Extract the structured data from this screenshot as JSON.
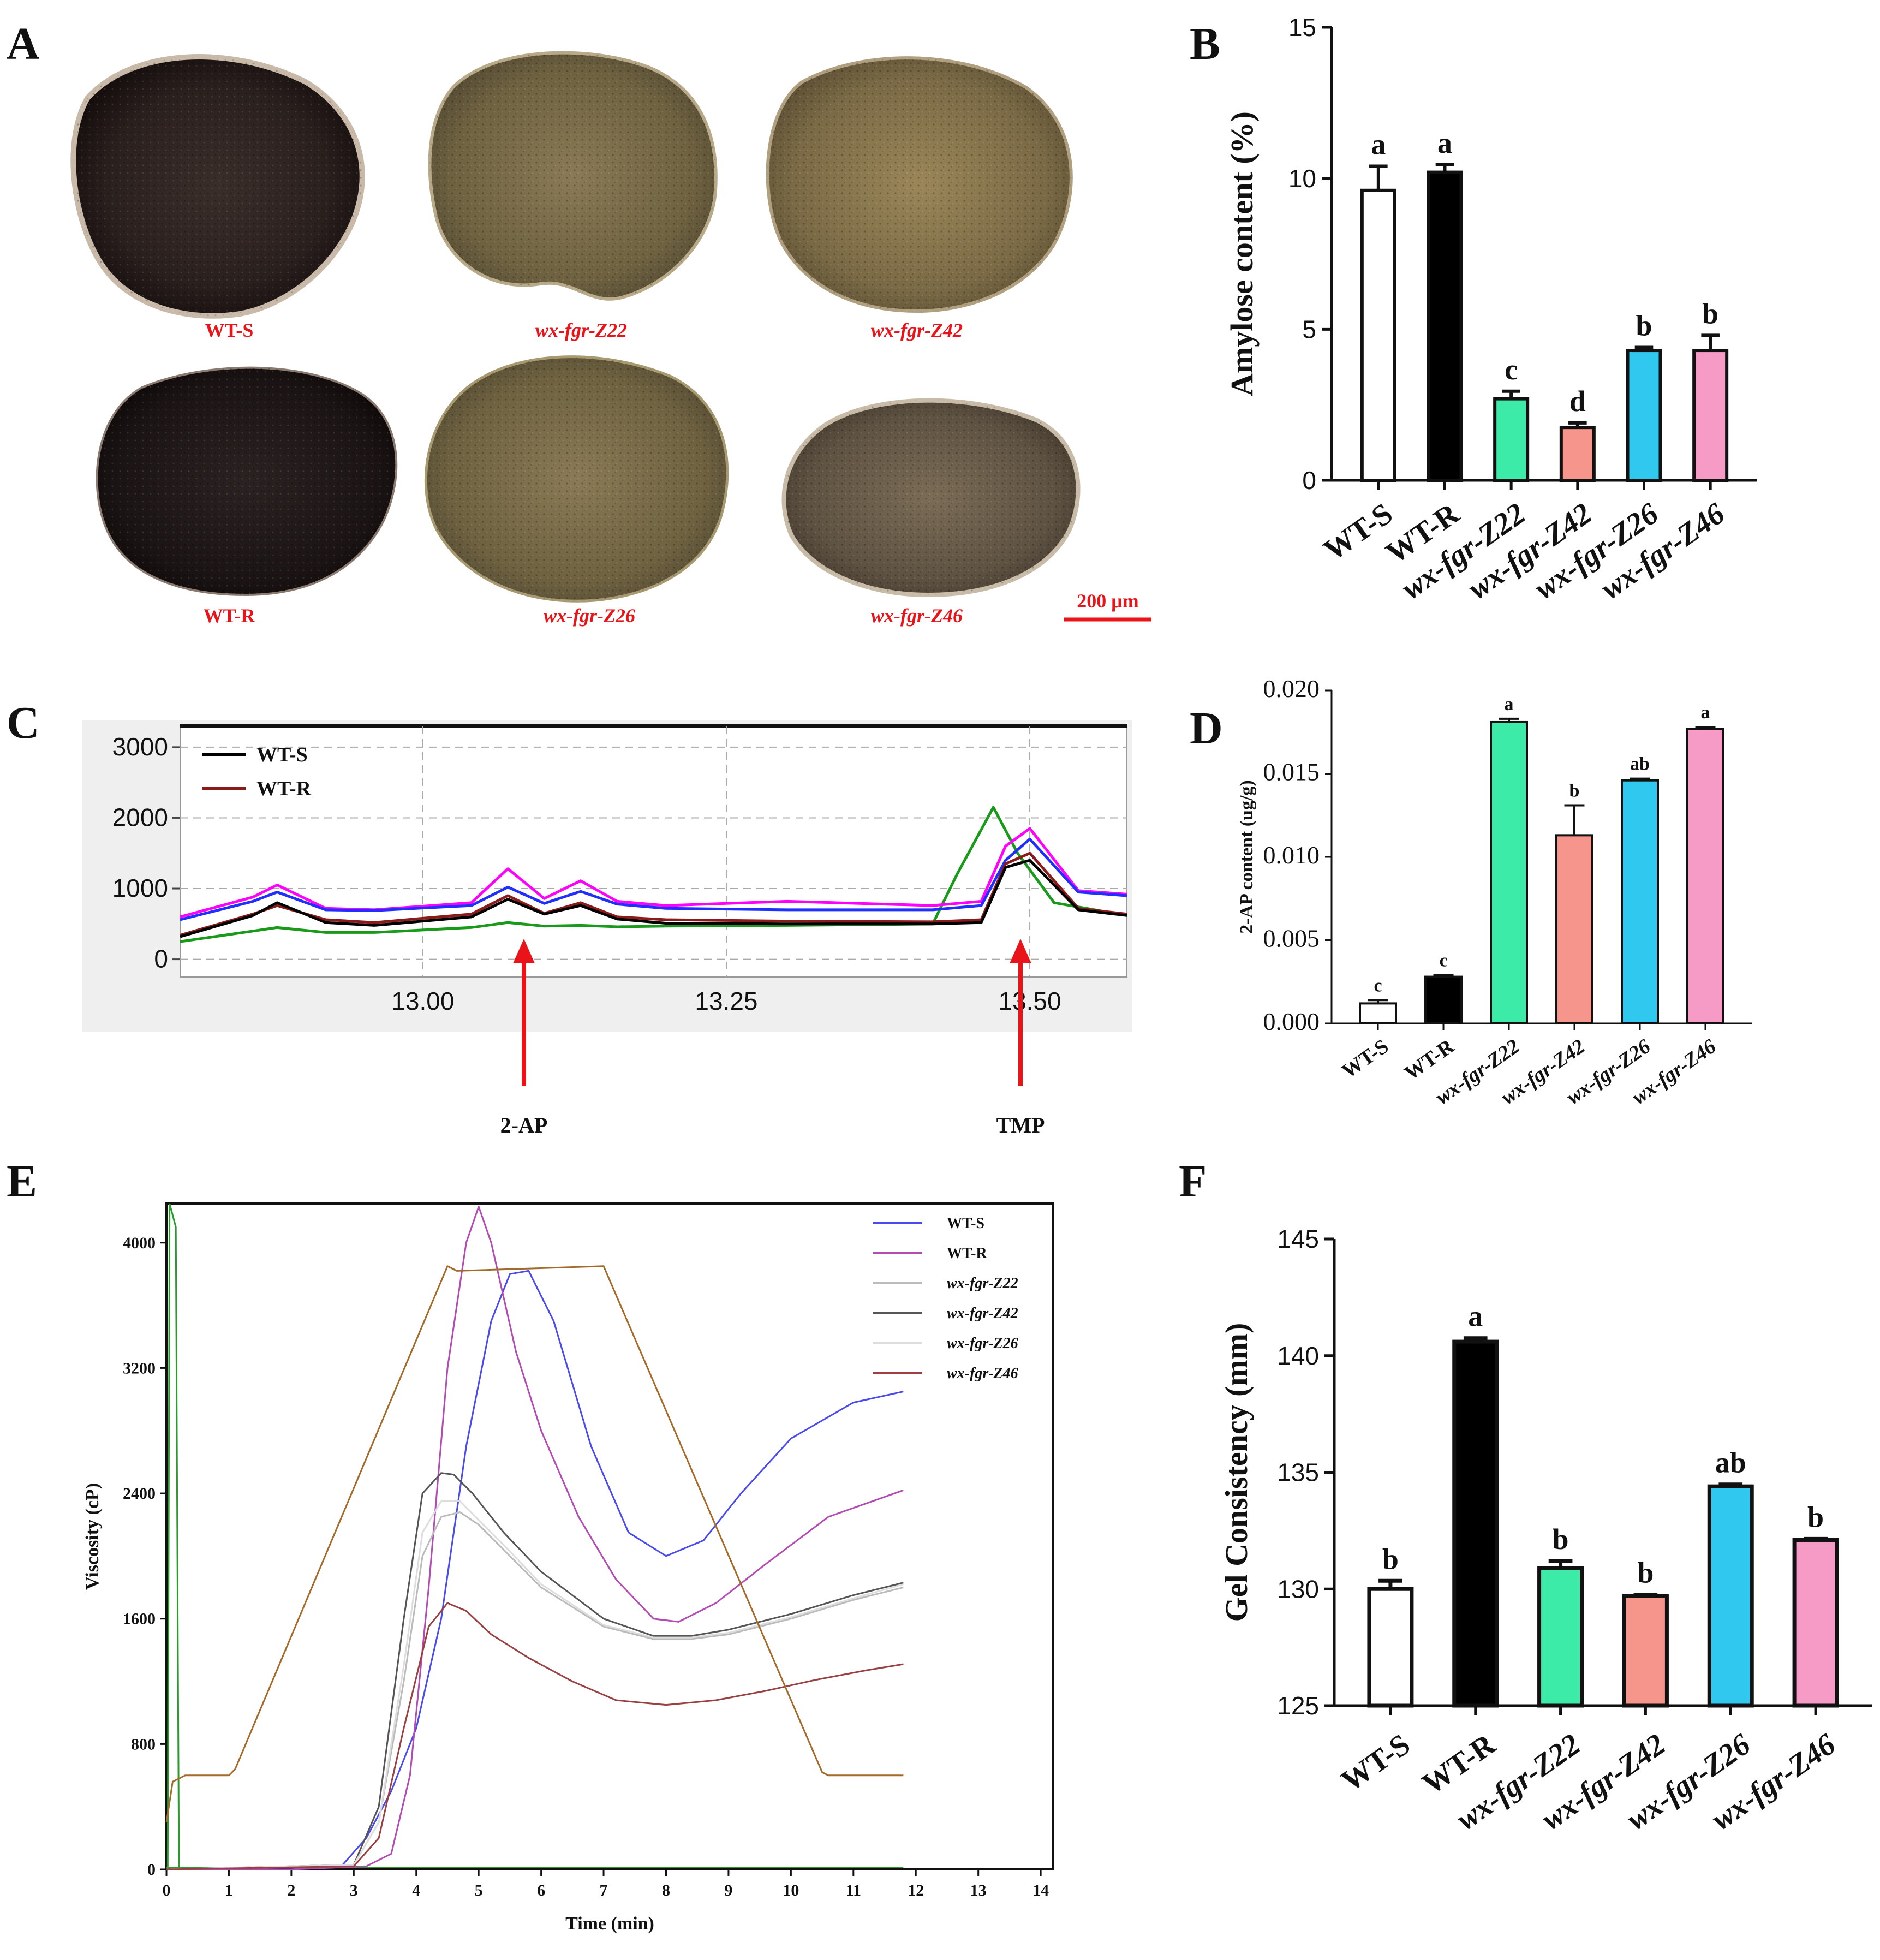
{
  "figure": {
    "panel_letters": [
      "A",
      "B",
      "C",
      "D",
      "E",
      "F"
    ],
    "colors": {
      "WT-S": "#ffffff",
      "WT-R": "#000000",
      "wx-fgr-Z22": "#3ceba8",
      "wx-fgr-Z42": "#f5958c",
      "wx-fgr-Z26": "#30c8ee",
      "wx-fgr-Z46": "#f59bc5",
      "label_red": "#e8141a"
    }
  },
  "panel_a": {
    "labels": [
      "WT-S",
      "wx-fgr-Z22",
      "wx-fgr-Z42",
      "WT-R",
      "wx-fgr-Z26",
      "wx-fgr-Z46"
    ],
    "scale_bar": "200 μm"
  },
  "chart_data": [
    {
      "id": "B",
      "type": "bar",
      "title": "",
      "ylabel": "Amylose content (%)",
      "xlabel": "",
      "categories": [
        "WT-S",
        "WT-R",
        "wx-fgr-Z22",
        "wx-fgr-Z42",
        "wx-fgr-Z26",
        "wx-fgr-Z46"
      ],
      "values": [
        9.6,
        10.2,
        2.7,
        1.75,
        4.3,
        4.3
      ],
      "errors": [
        0.8,
        0.25,
        0.25,
        0.15,
        0.1,
        0.5
      ],
      "significance": [
        "a",
        "a",
        "c",
        "d",
        "b",
        "b"
      ],
      "ylim": [
        0,
        15
      ],
      "yticks": [
        0,
        5,
        10,
        15
      ]
    },
    {
      "id": "C",
      "type": "line",
      "title": "",
      "xlabel": "",
      "ylabel": "",
      "xlim": [
        12.8,
        13.58
      ],
      "ylim": [
        -250,
        3300
      ],
      "xticks": [
        "13.00",
        "13.25",
        "13.50"
      ],
      "yticks": [
        "0",
        "1000",
        "2000",
        "3000"
      ],
      "legend": [
        "WT-S",
        "WT-R"
      ],
      "annotations": [
        "2-AP",
        "TMP"
      ],
      "series": [
        {
          "name": "WT-S",
          "color": "#000000",
          "x": [
            12.8,
            12.86,
            12.88,
            12.92,
            12.96,
            13.04,
            13.07,
            13.1,
            13.13,
            13.16,
            13.2,
            13.3,
            13.42,
            13.46,
            13.48,
            13.5,
            13.54,
            13.58
          ],
          "y": [
            320,
            620,
            800,
            520,
            480,
            600,
            850,
            640,
            760,
            570,
            510,
            500,
            500,
            520,
            1300,
            1400,
            700,
            620
          ]
        },
        {
          "name": "WT-R",
          "color": "#8b1a1a",
          "x": [
            12.8,
            12.86,
            12.88,
            12.92,
            12.96,
            13.04,
            13.07,
            13.1,
            13.13,
            13.16,
            13.2,
            13.3,
            13.42,
            13.46,
            13.48,
            13.5,
            13.54,
            13.58
          ],
          "y": [
            340,
            640,
            760,
            560,
            520,
            640,
            900,
            650,
            800,
            600,
            560,
            540,
            530,
            560,
            1350,
            1500,
            720,
            640
          ]
        },
        {
          "name": "series-blue",
          "color": "#1f2fff",
          "x": [
            12.8,
            12.86,
            12.88,
            12.92,
            12.96,
            13.04,
            13.07,
            13.1,
            13.13,
            13.16,
            13.2,
            13.3,
            13.42,
            13.46,
            13.48,
            13.5,
            13.54,
            13.58
          ],
          "y": [
            560,
            820,
            950,
            700,
            690,
            760,
            1020,
            790,
            960,
            780,
            720,
            700,
            700,
            760,
            1400,
            1700,
            950,
            900
          ]
        },
        {
          "name": "series-magenta",
          "color": "#ff00ff",
          "x": [
            12.8,
            12.86,
            12.88,
            12.92,
            12.96,
            13.04,
            13.07,
            13.1,
            13.13,
            13.16,
            13.2,
            13.3,
            13.42,
            13.46,
            13.48,
            13.5,
            13.54,
            13.58
          ],
          "y": [
            600,
            880,
            1050,
            720,
            700,
            800,
            1280,
            860,
            1110,
            820,
            760,
            820,
            760,
            820,
            1600,
            1850,
            970,
            920
          ]
        },
        {
          "name": "series-green",
          "color": "#1a9a1a",
          "x": [
            12.8,
            12.86,
            12.88,
            12.92,
            12.96,
            13.04,
            13.07,
            13.1,
            13.13,
            13.16,
            13.2,
            13.3,
            13.42,
            13.44,
            13.47,
            13.49,
            13.52,
            13.58
          ],
          "y": [
            250,
            400,
            450,
            380,
            380,
            450,
            520,
            470,
            480,
            460,
            470,
            480,
            500,
            1200,
            2150,
            1500,
            800,
            620
          ]
        }
      ]
    },
    {
      "id": "D",
      "type": "bar",
      "title": "",
      "ylabel": "2-AP content (ug/g)",
      "xlabel": "",
      "categories": [
        "WT-S",
        "WT-R",
        "wx-fgr-Z22",
        "wx-fgr-Z42",
        "wx-fgr-Z26",
        "wx-fgr-Z46"
      ],
      "values": [
        0.0012,
        0.0028,
        0.0181,
        0.0113,
        0.0146,
        0.0177
      ],
      "errors": [
        0.0002,
        0.0001,
        0.0002,
        0.0018,
        0.0001,
        0.0001
      ],
      "significance": [
        "c",
        "c",
        "a",
        "b",
        "ab",
        "a"
      ],
      "ylim": [
        0,
        0.02
      ],
      "yticks": [
        "0.000",
        "0.005",
        "0.010",
        "0.015",
        "0.020"
      ]
    },
    {
      "id": "E",
      "type": "line",
      "title": "",
      "xlabel": "Time (min)",
      "ylabel": "Viscosity (cP)",
      "xlim": [
        0,
        14.2
      ],
      "ylim": [
        0,
        4250
      ],
      "xticks": [
        "0",
        "1",
        "2",
        "3",
        "4",
        "5",
        "6",
        "7",
        "8",
        "9",
        "10",
        "11",
        "12",
        "13",
        "14"
      ],
      "yticks": [
        "0",
        "800",
        "1600",
        "2400",
        "3200",
        "4000"
      ],
      "legend": [
        "WT-S",
        "WT-R",
        "wx-fgr-Z22",
        "wx-fgr-Z42",
        "wx-fgr-Z26",
        "wx-fgr-Z46"
      ],
      "series": [
        {
          "name": "WT-S",
          "color": "#4a4aee",
          "x": [
            0,
            2,
            2.8,
            3.2,
            3.6,
            4.0,
            4.4,
            4.8,
            5.2,
            5.5,
            5.8,
            6.2,
            6.8,
            7.4,
            8.0,
            8.6,
            9.2,
            10.0,
            11.0,
            11.8
          ],
          "y": [
            0,
            0,
            20,
            200,
            500,
            900,
            1600,
            2700,
            3500,
            3800,
            3820,
            3500,
            2700,
            2150,
            2000,
            2100,
            2400,
            2750,
            2980,
            3050
          ]
        },
        {
          "name": "WT-R",
          "color": "#b24cb2",
          "x": [
            0,
            2,
            3.2,
            3.6,
            3.9,
            4.2,
            4.5,
            4.8,
            5.0,
            5.2,
            5.6,
            6.0,
            6.6,
            7.2,
            7.8,
            8.2,
            8.8,
            9.6,
            10.6,
            11.8
          ],
          "y": [
            0,
            0,
            20,
            100,
            600,
            1800,
            3200,
            4000,
            4230,
            4000,
            3300,
            2800,
            2250,
            1850,
            1600,
            1580,
            1700,
            1950,
            2250,
            2420
          ]
        },
        {
          "name": "wx-fgr-Z22",
          "color": "#bbbbbb",
          "x": [
            0,
            3,
            3.4,
            3.8,
            4.1,
            4.4,
            4.7,
            5.0,
            5.5,
            6.0,
            7.0,
            7.8,
            8.4,
            9.0,
            10.0,
            11.0,
            11.8
          ],
          "y": [
            0,
            30,
            300,
            1200,
            2000,
            2250,
            2280,
            2200,
            2000,
            1800,
            1550,
            1470,
            1470,
            1500,
            1600,
            1720,
            1800
          ]
        },
        {
          "name": "wx-fgr-Z42",
          "color": "#555555",
          "x": [
            0,
            3,
            3.4,
            3.8,
            4.1,
            4.4,
            4.6,
            4.9,
            5.4,
            6.0,
            7.0,
            7.8,
            8.4,
            9.0,
            10.0,
            11.0,
            11.8
          ],
          "y": [
            0,
            30,
            400,
            1600,
            2400,
            2530,
            2520,
            2400,
            2150,
            1900,
            1600,
            1490,
            1490,
            1530,
            1630,
            1750,
            1830
          ]
        },
        {
          "name": "wx-fgr-Z26",
          "color": "#dddddd",
          "x": [
            0,
            3,
            3.4,
            3.8,
            4.1,
            4.4,
            4.7,
            5.0,
            5.5,
            6.0,
            7.0,
            7.8,
            8.4,
            9.0,
            10.0,
            11.0,
            11.8
          ],
          "y": [
            0,
            30,
            300,
            1300,
            2150,
            2350,
            2350,
            2230,
            2030,
            1820,
            1560,
            1480,
            1480,
            1510,
            1610,
            1730,
            1820
          ]
        },
        {
          "name": "wx-fgr-Z46",
          "color": "#9b4040",
          "x": [
            0,
            3,
            3.4,
            3.8,
            4.2,
            4.5,
            4.8,
            5.2,
            5.8,
            6.5,
            7.2,
            8.0,
            8.8,
            9.6,
            10.4,
            11.2,
            11.8
          ],
          "y": [
            0,
            20,
            200,
            900,
            1550,
            1700,
            1650,
            1500,
            1350,
            1200,
            1080,
            1050,
            1080,
            1140,
            1210,
            1270,
            1310
          ]
        },
        {
          "name": "temperature-profile",
          "color": "#a36a2a",
          "x": [
            0,
            0.1,
            0.3,
            1.0,
            1.1,
            4.5,
            4.65,
            7.0,
            10.5,
            10.6,
            11.8
          ],
          "y": [
            300,
            560,
            600,
            600,
            640,
            3850,
            3820,
            3850,
            620,
            600,
            600
          ]
        }
      ]
    },
    {
      "id": "F",
      "type": "bar",
      "title": "",
      "ylabel": "Gel Consistency (mm)",
      "xlabel": "",
      "categories": [
        "WT-S",
        "WT-R",
        "wx-fgr-Z22",
        "wx-fgr-Z42",
        "wx-fgr-Z26",
        "wx-fgr-Z46"
      ],
      "values": [
        130.0,
        140.6,
        130.9,
        129.7,
        134.4,
        132.1
      ],
      "errors": [
        0.35,
        0.15,
        0.3,
        0.06,
        0.08,
        0.05
      ],
      "significance": [
        "b",
        "a",
        "b",
        "b",
        "ab",
        "b"
      ],
      "ylim": [
        125,
        145
      ],
      "yticks": [
        125,
        130,
        135,
        140,
        145
      ]
    }
  ]
}
